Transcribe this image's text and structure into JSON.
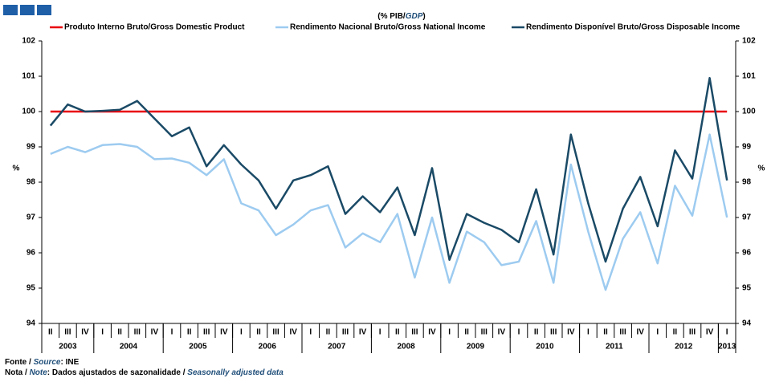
{
  "chart_data": {
    "type": "line",
    "title": {
      "pt": "(% PIB/",
      "en": "GDP",
      "close": ")"
    },
    "y_label": "%",
    "y2_label": "%",
    "categories": [
      "II",
      "III",
      "IV",
      "I",
      "II",
      "III",
      "IV",
      "I",
      "II",
      "III",
      "IV",
      "I",
      "II",
      "III",
      "IV",
      "I",
      "II",
      "III",
      "IV",
      "I",
      "II",
      "III",
      "IV",
      "I",
      "II",
      "III",
      "IV",
      "I",
      "II",
      "III",
      "IV",
      "I",
      "II",
      "III",
      "IV",
      "I",
      "II",
      "III",
      "IV",
      "I"
    ],
    "years": [
      "2003",
      null,
      null,
      "2004",
      null,
      null,
      null,
      "2005",
      null,
      null,
      null,
      "2006",
      null,
      null,
      null,
      "2007",
      null,
      null,
      null,
      "2008",
      null,
      null,
      null,
      "2009",
      null,
      null,
      null,
      "2010",
      null,
      null,
      null,
      "2011",
      null,
      null,
      null,
      "2012",
      null,
      null,
      null,
      "2013"
    ],
    "series": [
      {
        "name": "Produto Interno Bruto/Gross Domestic Product",
        "color": "#e8000b",
        "values": [
          100,
          100,
          100,
          100,
          100,
          100,
          100,
          100,
          100,
          100,
          100,
          100,
          100,
          100,
          100,
          100,
          100,
          100,
          100,
          100,
          100,
          100,
          100,
          100,
          100,
          100,
          100,
          100,
          100,
          100,
          100,
          100,
          100,
          100,
          100,
          100,
          100,
          100,
          100,
          100
        ]
      },
      {
        "name": "Rendimento Nacional Bruto/Gross National Income",
        "color": "#9dcbf0",
        "values": [
          98.8,
          99.0,
          98.85,
          99.05,
          99.08,
          99.0,
          98.65,
          98.67,
          98.55,
          98.2,
          98.65,
          97.4,
          97.2,
          96.5,
          96.8,
          97.2,
          97.35,
          96.15,
          96.55,
          96.3,
          97.1,
          95.3,
          97.0,
          95.15,
          96.6,
          96.3,
          95.65,
          95.75,
          96.9,
          95.15,
          98.5,
          96.6,
          94.95,
          96.4,
          97.15,
          95.7,
          97.9,
          97.05,
          99.35,
          97.0
        ]
      },
      {
        "name": "Rendimento Disponível Bruto/Gross Disposable Income",
        "color": "#1a4a66",
        "values": [
          99.6,
          100.2,
          100.0,
          100.02,
          100.05,
          100.3,
          99.8,
          99.3,
          99.55,
          98.45,
          99.05,
          98.5,
          98.05,
          97.25,
          98.05,
          98.2,
          98.45,
          97.1,
          97.6,
          97.15,
          97.85,
          96.5,
          98.4,
          95.8,
          97.1,
          96.85,
          96.65,
          96.3,
          97.8,
          95.95,
          99.35,
          97.4,
          95.75,
          97.25,
          98.15,
          96.75,
          98.9,
          98.1,
          100.95,
          98.05
        ]
      }
    ],
    "ylim": [
      94,
      102
    ],
    "yticks": [
      94,
      95,
      96,
      97,
      98,
      99,
      100,
      101,
      102
    ],
    "y2lim": [
      94,
      102
    ],
    "y2ticks": [
      94,
      95,
      96,
      97,
      98,
      99,
      100,
      101,
      102
    ],
    "legend": "top",
    "footer": {
      "source_pt": "Fonte / ",
      "source_en": "Source",
      "source_text": ":  INE",
      "note_pt": "Nota / ",
      "note_en": "Note",
      "note_text": ": Dados ajustados de sazonalidade / ",
      "note_en2": "Seasonally adjusted data"
    }
  }
}
